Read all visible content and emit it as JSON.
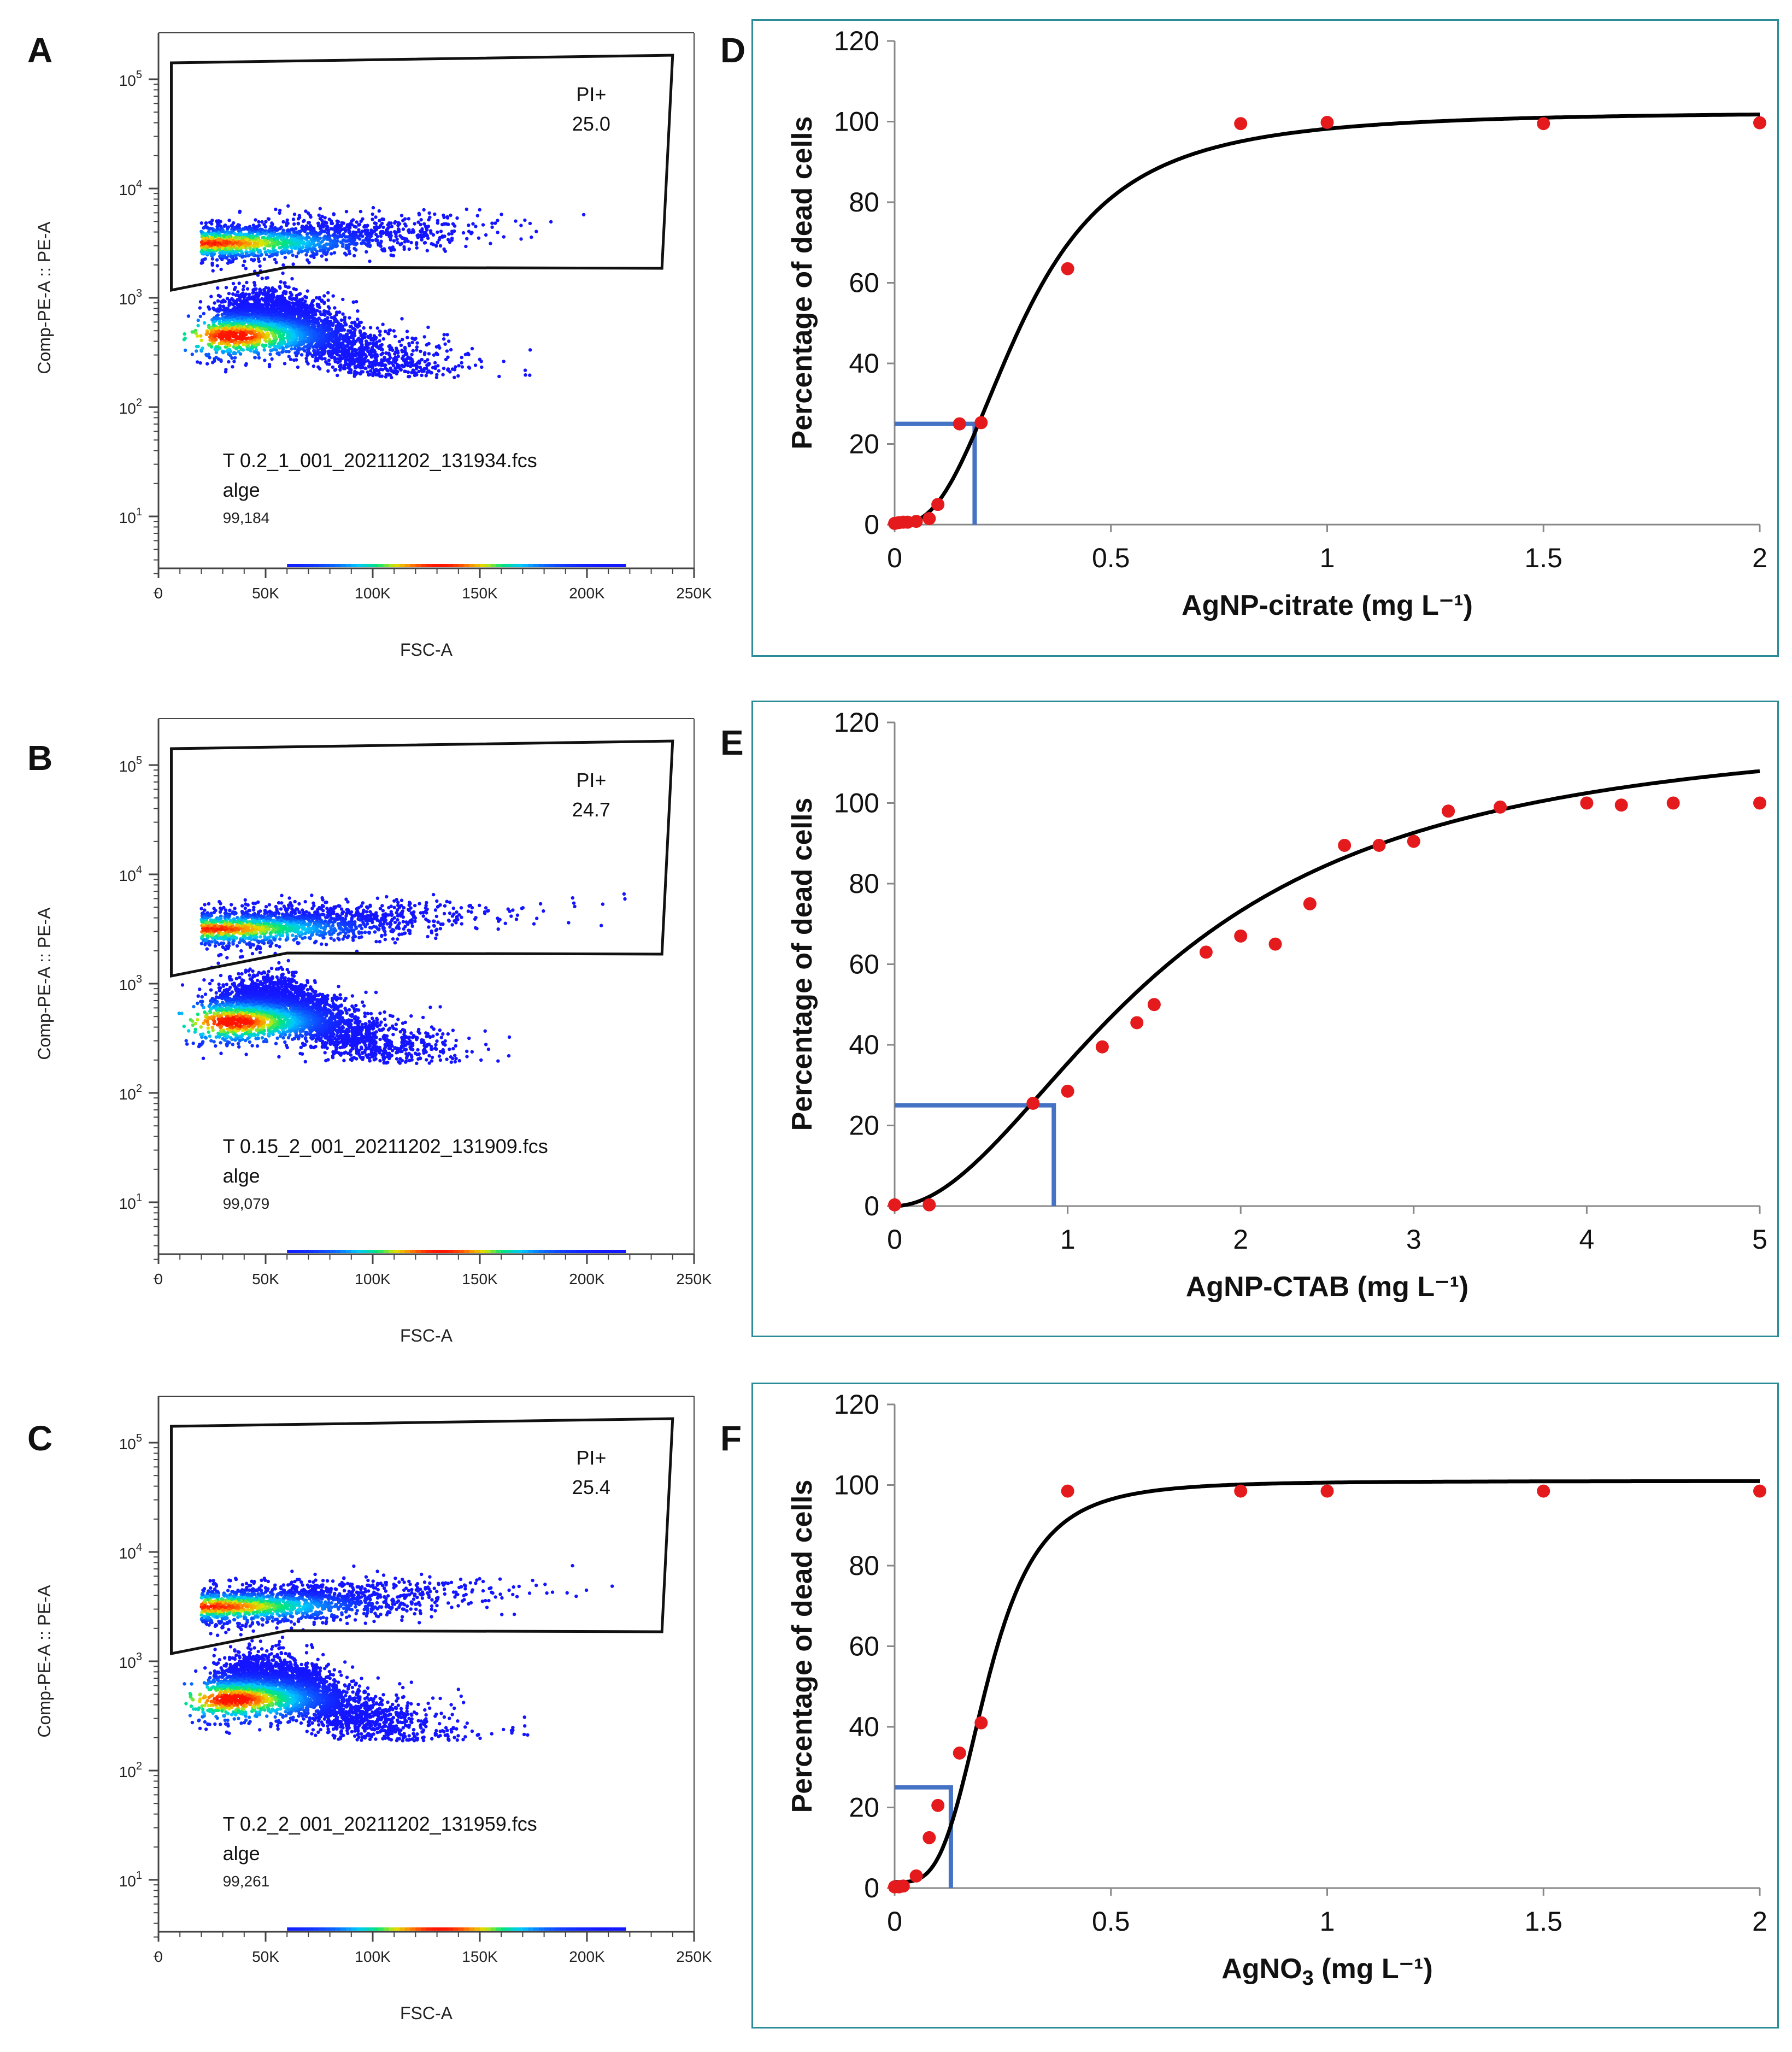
{
  "panels": {
    "A": {
      "label": "A",
      "fcs": {
        "filename": "T 0.2_1_001_20211202_131934.fcs",
        "population": "alge",
        "count": "99,184",
        "gate_name": "PI+",
        "gate_value": "25.0"
      }
    },
    "B": {
      "label": "B",
      "fcs": {
        "filename": "T 0.15_2_001_20211202_131909.fcs",
        "population": "alge",
        "count": "99,079",
        "gate_name": "PI+",
        "gate_value": "24.7"
      }
    },
    "C": {
      "label": "C",
      "fcs": {
        "filename": "T 0.2_2_001_20211202_131959.fcs",
        "population": "alge",
        "count": "99,261",
        "gate_name": "PI+",
        "gate_value": "25.4"
      }
    },
    "D": {
      "label": "D"
    },
    "E": {
      "label": "E"
    },
    "F": {
      "label": "F"
    }
  },
  "flow": {
    "xlabel": "FSC-A",
    "ylabel": "Comp-PE-A :: PE-A",
    "xticks": [
      "0",
      "50K",
      "100K",
      "150K",
      "200K",
      "250K"
    ],
    "ybases": [
      "10",
      "10",
      "10",
      "10",
      "10"
    ],
    "yexps": [
      "1",
      "2",
      "3",
      "4",
      "5"
    ]
  },
  "colors": {
    "curve": "#000000",
    "points": "#e41a1c",
    "ec25": "#4472c4",
    "frame": "#2a8c96",
    "density_low": "#1010ff",
    "density_high": "#ff2000"
  },
  "chart_data": [
    {
      "type": "scatter",
      "title": "",
      "xlabel": "AgNP-citrate (mg L⁻¹)",
      "ylabel": "Percentage of dead cells",
      "xlim": [
        0,
        2
      ],
      "ylim": [
        0,
        120
      ],
      "xticks": [
        0,
        0.5,
        1,
        1.5,
        2
      ],
      "xtick_labels": [
        "0",
        "0.5",
        "1",
        "1.5",
        "2"
      ],
      "yticks": [
        0,
        20,
        40,
        60,
        80,
        100,
        120
      ],
      "ytick_labels": [
        "0",
        "20",
        "40",
        "60",
        "80",
        "100",
        "120"
      ],
      "points": {
        "x": [
          0.0,
          0.01,
          0.02,
          0.03,
          0.05,
          0.08,
          0.1,
          0.15,
          0.2,
          0.4,
          0.8,
          1.0,
          1.5,
          2.0
        ],
        "y": [
          0.3,
          0.5,
          0.6,
          0.6,
          0.8,
          1.5,
          5.0,
          25.0,
          25.3,
          63.5,
          99.5,
          99.8,
          99.5,
          99.7
        ]
      },
      "fit": {
        "model": "hill",
        "top": 102.5,
        "ec50": 0.3,
        "n": 2.6
      },
      "ec25": {
        "x": 0.185,
        "y": 25
      }
    },
    {
      "type": "scatter",
      "title": "",
      "xlabel": "AgNP-CTAB (mg L⁻¹)",
      "ylabel": "Percentage of dead cells",
      "xlim": [
        0,
        5
      ],
      "ylim": [
        0,
        120
      ],
      "xticks": [
        0,
        1,
        2,
        3,
        4,
        5
      ],
      "xtick_labels": [
        "0",
        "1",
        "2",
        "3",
        "4",
        "5"
      ],
      "yticks": [
        0,
        20,
        40,
        60,
        80,
        100,
        120
      ],
      "ytick_labels": [
        "0",
        "20",
        "40",
        "60",
        "80",
        "100",
        "120"
      ],
      "points": {
        "x": [
          0.0,
          0.2,
          0.8,
          1.0,
          1.2,
          1.4,
          1.5,
          1.8,
          2.0,
          2.2,
          2.4,
          2.6,
          2.8,
          3.0,
          3.2,
          3.5,
          4.0,
          4.2,
          4.5,
          5.0
        ],
        "y": [
          0.3,
          0.3,
          25.5,
          28.5,
          39.5,
          45.5,
          50.0,
          63.0,
          67.0,
          65.0,
          75.0,
          89.5,
          89.5,
          90.5,
          98.0,
          99.0,
          100.0,
          99.5,
          100.0,
          100.0
        ]
      },
      "fit": {
        "model": "hill",
        "top": 120,
        "ec50": 1.58,
        "n": 1.9
      },
      "ec25": {
        "x": 0.92,
        "y": 25
      }
    },
    {
      "type": "scatter",
      "title": "",
      "xlabel": "AgNO3 (mg L⁻¹)",
      "ylabel": "Percentage of dead cells",
      "xlim": [
        0,
        2
      ],
      "ylim": [
        0,
        120
      ],
      "xticks": [
        0,
        0.5,
        1,
        1.5,
        2
      ],
      "xtick_labels": [
        "0",
        "0.5",
        "1",
        "1.5",
        "2"
      ],
      "yticks": [
        0,
        20,
        40,
        60,
        80,
        100,
        120
      ],
      "ytick_labels": [
        "0",
        "20",
        "40",
        "60",
        "80",
        "100",
        "120"
      ],
      "points": {
        "x": [
          0.0,
          0.01,
          0.02,
          0.05,
          0.08,
          0.1,
          0.15,
          0.2,
          0.4,
          0.8,
          1.0,
          1.5,
          2.0
        ],
        "y": [
          0.3,
          0.3,
          0.5,
          3.0,
          12.5,
          20.5,
          33.5,
          41.0,
          98.5,
          98.5,
          98.5,
          98.5,
          98.5
        ]
      },
      "fit": {
        "model": "hill",
        "top": 101.0,
        "base": 1.5,
        "ec50": 0.215,
        "n": 3.6
      },
      "ec25": {
        "x": 0.13,
        "y": 25
      }
    }
  ]
}
